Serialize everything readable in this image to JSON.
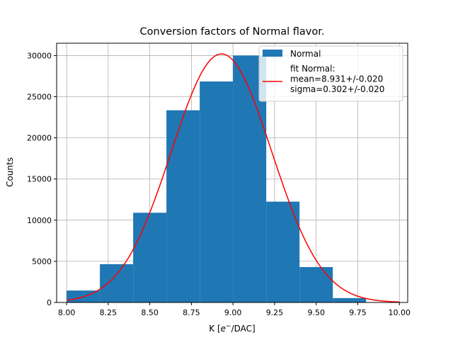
{
  "chart_data": {
    "type": "bar",
    "title": "Conversion factors of Normal flavor.",
    "xlabel_main": "K [",
    "xlabel_sym": "e",
    "xlabel_sup": "−",
    "xlabel_tail": "/DAC]",
    "ylabel": "Counts",
    "xlim": [
      7.94,
      10.05
    ],
    "ylim": [
      0,
      31500
    ],
    "xticks": [
      8.0,
      8.25,
      8.5,
      8.75,
      9.0,
      9.25,
      9.5,
      9.75,
      10.0
    ],
    "xtick_labels": [
      "8.00",
      "8.25",
      "8.50",
      "8.75",
      "9.00",
      "9.25",
      "9.50",
      "9.75",
      "10.00"
    ],
    "yticks": [
      0,
      5000,
      10000,
      15000,
      20000,
      25000,
      30000
    ],
    "ytick_labels": [
      "0",
      "5000",
      "10000",
      "15000",
      "20000",
      "25000",
      "30000"
    ],
    "grid": true,
    "legend_position": "top-right",
    "bins": [
      8.0,
      8.2,
      8.4,
      8.6,
      8.8,
      9.0,
      9.2,
      9.4,
      9.6,
      9.8,
      10.0
    ],
    "series": [
      {
        "name": "Normal",
        "kind": "histogram",
        "color": "#1f77b4",
        "values": [
          1450,
          4650,
          10900,
          23350,
          26850,
          30000,
          12250,
          4300,
          530,
          0
        ]
      },
      {
        "name": "fit Normal:",
        "kind": "gaussian-fit",
        "color": "#ff0000",
        "amplitude": 30200,
        "mean": 8.931,
        "sigma": 0.302,
        "range": [
          8.0,
          10.0
        ],
        "label_lines": [
          "fit Normal:",
          "mean=8.931+/-0.020",
          "sigma=0.302+/-0.020"
        ]
      }
    ]
  }
}
